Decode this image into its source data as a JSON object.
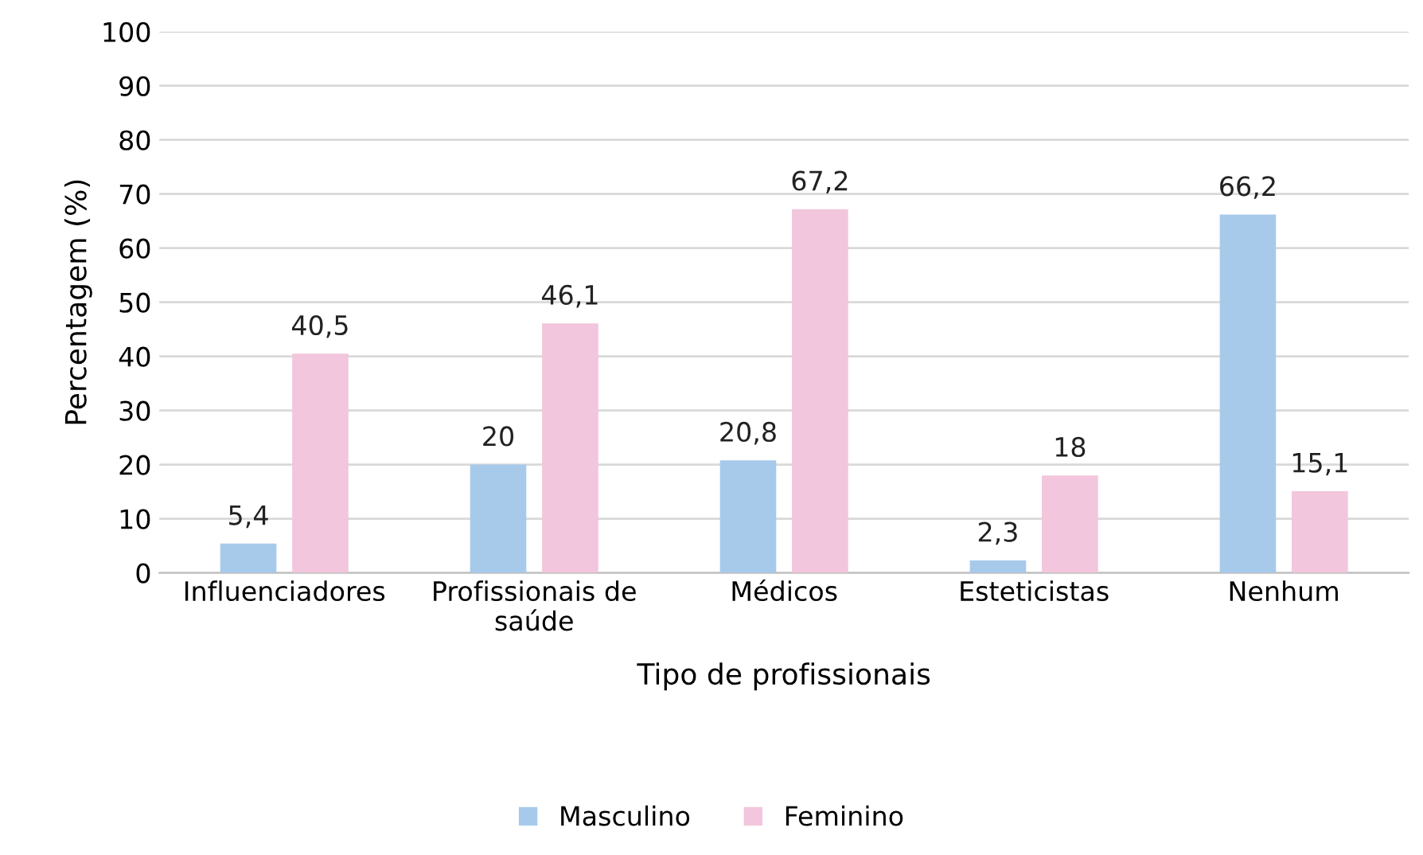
{
  "chart_data": {
    "type": "bar",
    "categories": [
      "Influenciadores",
      "Profissionais de saúde",
      "Médicos",
      "Esteticistas",
      "Nenhum"
    ],
    "series": [
      {
        "name": "Masculino",
        "color": "#a7caeb",
        "values": [
          5.4,
          20,
          20.8,
          2.3,
          66.2
        ],
        "value_labels": [
          "5,4",
          "20",
          "20,8",
          "2,3",
          "66,2"
        ]
      },
      {
        "name": "Feminino",
        "color": "#f2c6dc",
        "values": [
          40.5,
          46.1,
          67.2,
          18,
          15.1
        ],
        "value_labels": [
          "40,5",
          "46,1",
          "67,2",
          "18",
          "15,1"
        ]
      }
    ],
    "xlabel": "Tipo de profissionais",
    "ylabel": "Percentagem (%)",
    "ylim": [
      0,
      100
    ],
    "yticks": [
      0,
      10,
      20,
      30,
      40,
      50,
      60,
      70,
      80,
      90,
      100
    ],
    "grid": "y",
    "legend": "bottom"
  }
}
